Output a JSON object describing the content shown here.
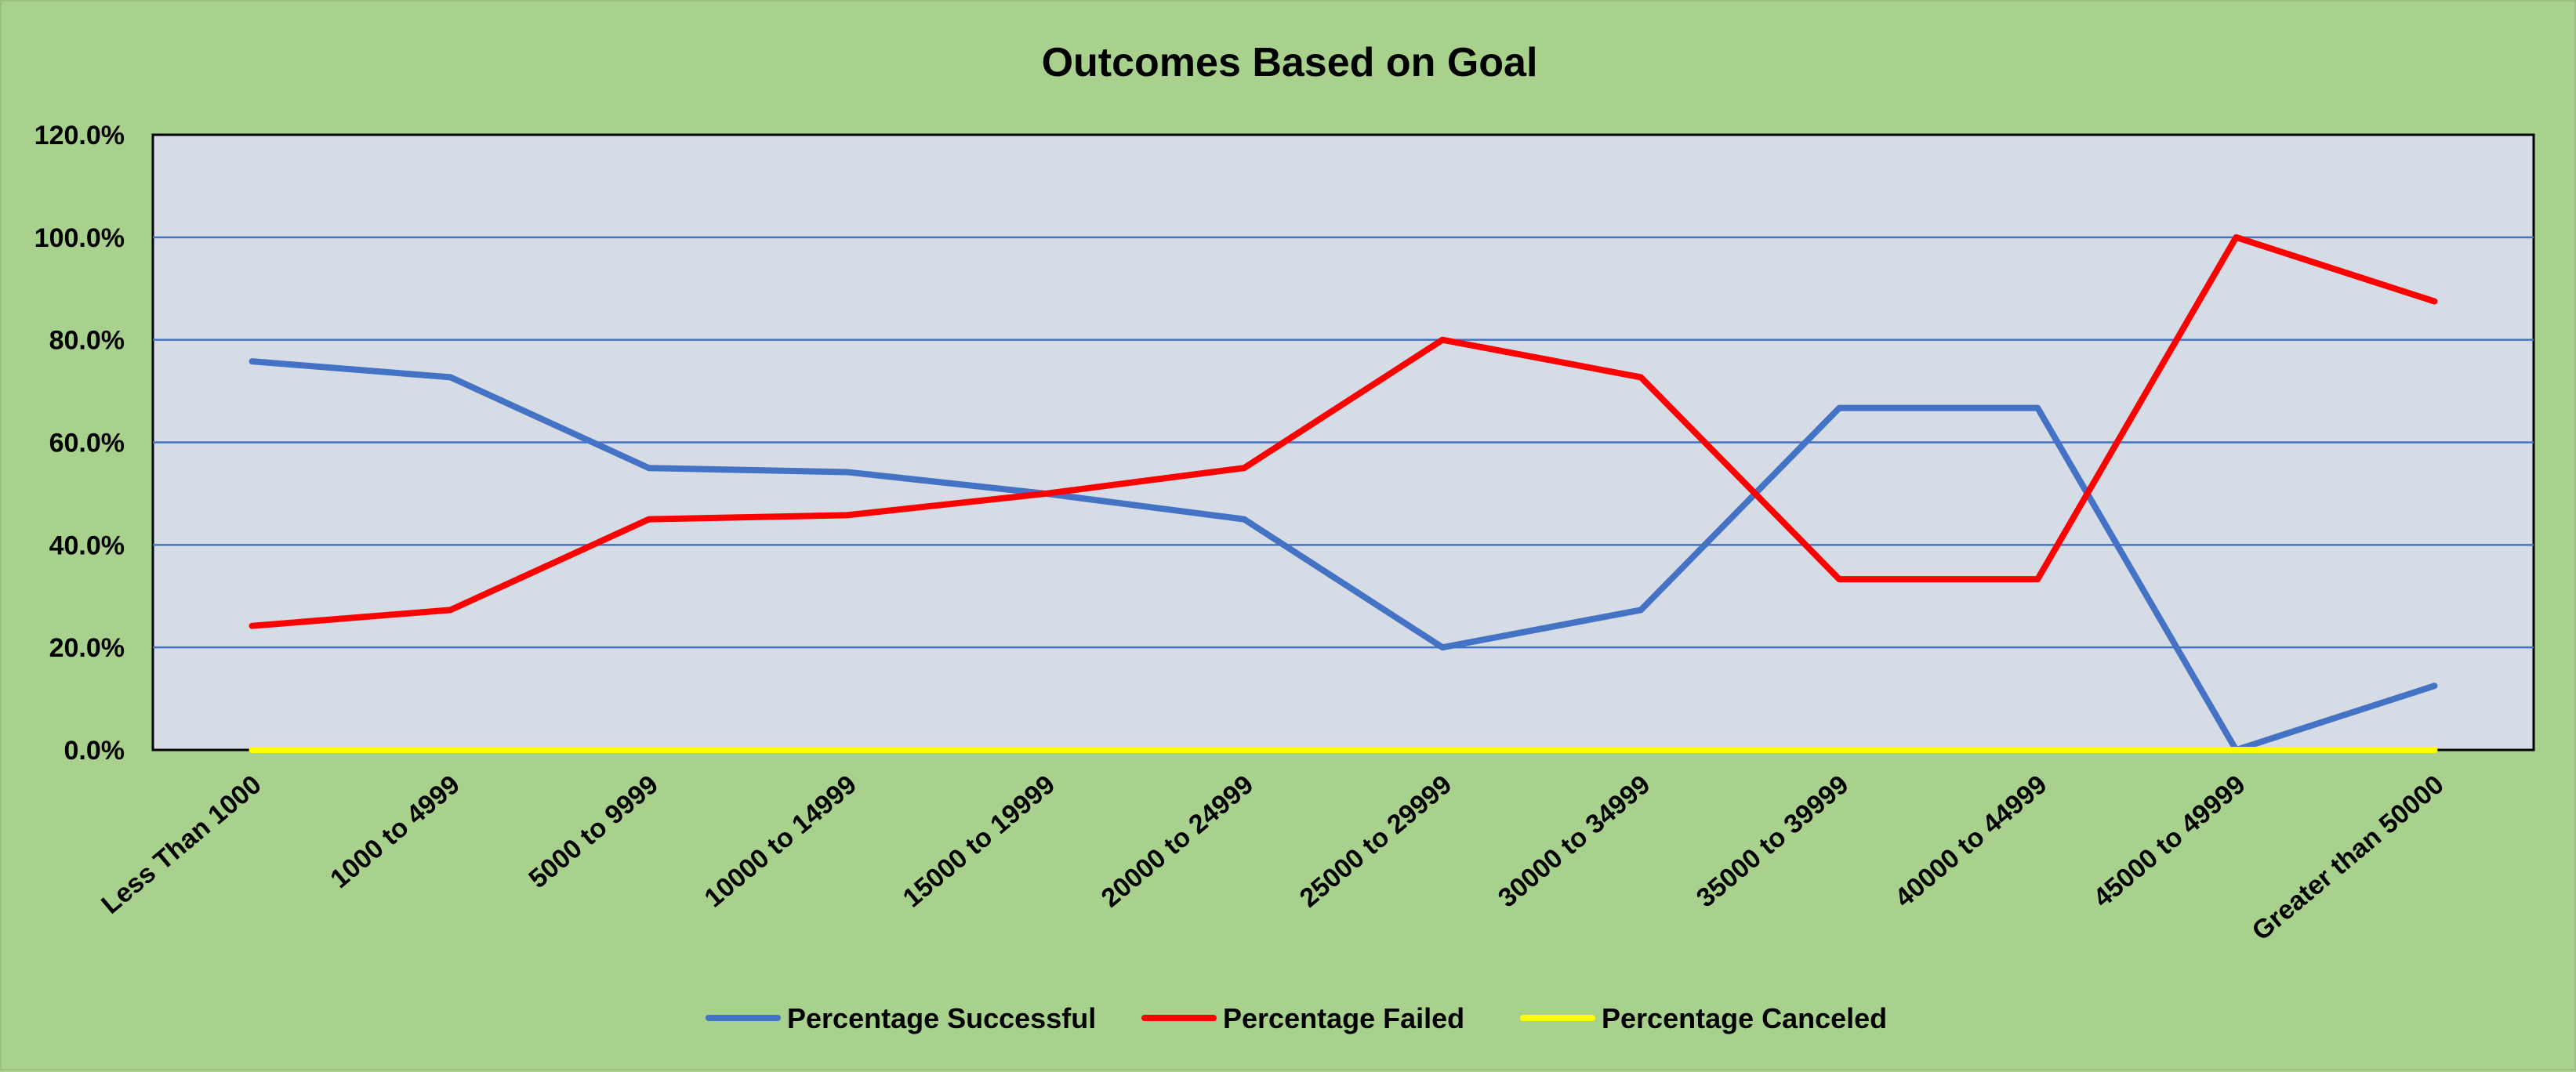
{
  "chart_data": {
    "type": "line",
    "title": "Outcomes Based on Goal",
    "categories": [
      "Less Than 1000",
      "1000 to 4999",
      "5000 to 9999",
      "10000 to 14999",
      "15000 to 19999",
      "20000 to 24999",
      "25000 to 29999",
      "30000 to 34999",
      "35000 to 39999",
      "40000 to 44999",
      "45000 to 49999",
      "Greater than 50000"
    ],
    "series": [
      {
        "name": "Percentage Successful",
        "color": "#4472c4",
        "values": [
          0.758,
          0.727,
          0.55,
          0.542,
          0.5,
          0.45,
          0.2,
          0.273,
          0.667,
          0.667,
          0.0,
          0.125
        ]
      },
      {
        "name": "Percentage Failed",
        "color": "#ff0000",
        "values": [
          0.242,
          0.273,
          0.45,
          0.458,
          0.5,
          0.55,
          0.8,
          0.727,
          0.333,
          0.333,
          1.0,
          0.875
        ]
      },
      {
        "name": "Percentage Canceled",
        "color": "#ffff00",
        "values": [
          0,
          0,
          0,
          0,
          0,
          0,
          0,
          0,
          0,
          0,
          0,
          0
        ]
      }
    ],
    "yticks": [
      "0.0%",
      "20.0%",
      "40.0%",
      "60.0%",
      "80.0%",
      "100.0%",
      "120.0%"
    ],
    "ylim": [
      0,
      1.2
    ],
    "plot_background": "#d6dce5",
    "chart_background": "#a9d18e",
    "gridline_color": "#4472c4",
    "grid": true,
    "legend_position": "bottom"
  }
}
